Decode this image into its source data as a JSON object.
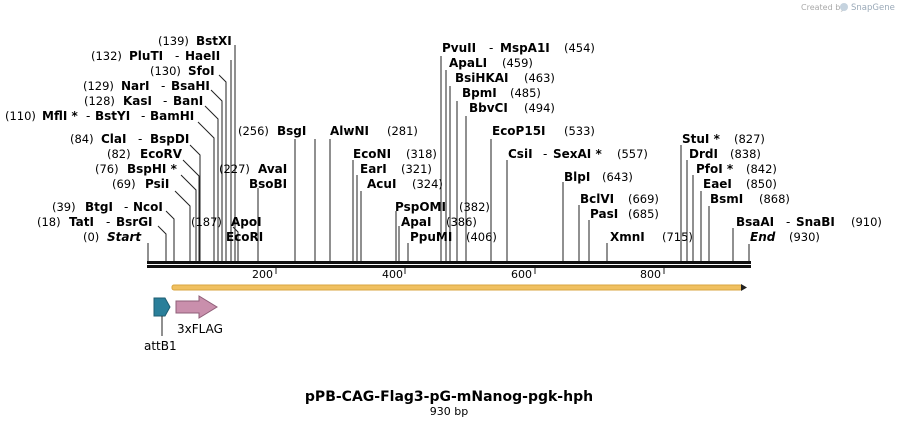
{
  "watermark": {
    "prefix": "Created by",
    "brand": "SnapGene",
    "icon": "snapgene-logo-icon"
  },
  "plasmid": {
    "name": "pPB-CAG-Flag3-pG-mNanog-pgk-hph",
    "length_label": "930 bp"
  },
  "ruler": {
    "ticks": [
      "200",
      "400",
      "600",
      "800"
    ]
  },
  "sites": [
    {
      "pos": "(0)",
      "name": "Start"
    },
    {
      "pos": "(18)",
      "name": "TatI",
      "name2": "BsrGI"
    },
    {
      "pos": "(39)",
      "name": "BtgI",
      "name2": "NcoI"
    },
    {
      "pos": "(69)",
      "name": "PsiI"
    },
    {
      "pos": "(76)",
      "name": "BspHI *"
    },
    {
      "pos": "(82)",
      "name": "EcoRV"
    },
    {
      "pos": "(84)",
      "name": "ClaI",
      "name2": "BspDI"
    },
    {
      "pos": "(110)",
      "name": "MflI *",
      "name2": "BstYI",
      "name3": "BamHI"
    },
    {
      "pos": "(128)",
      "name": "KasI",
      "name2": "BanI"
    },
    {
      "pos": "(129)",
      "name": "NarI",
      "name2": "BsaHI"
    },
    {
      "pos": "(130)",
      "name": "SfoI"
    },
    {
      "pos": "(132)",
      "name": "PluTI",
      "name2": "HaeII"
    },
    {
      "pos": "(139)",
      "name": "BstXI"
    },
    {
      "pos": "(187)",
      "name": "ApoI"
    },
    {
      "pos": "",
      "name": "EcoRI"
    },
    {
      "pos": "(227)",
      "name": "AvaI"
    },
    {
      "pos": "",
      "name": "BsoBI"
    },
    {
      "pos": "(256)",
      "name": "BsgI"
    },
    {
      "pos": "(281)",
      "name": "AlwNI"
    },
    {
      "pos": "(318)",
      "name": "EcoNI"
    },
    {
      "pos": "(321)",
      "name": "EarI"
    },
    {
      "pos": "(324)",
      "name": "AcuI"
    },
    {
      "pos": "(382)",
      "name": "PspOMI"
    },
    {
      "pos": "(386)",
      "name": "ApaI"
    },
    {
      "pos": "(406)",
      "name": "PpuMI"
    },
    {
      "pos": "(454)",
      "name": "PvuII",
      "name2": "MspA1I"
    },
    {
      "pos": "(459)",
      "name": "ApaLI"
    },
    {
      "pos": "(463)",
      "name": "BsiHKAI"
    },
    {
      "pos": "(485)",
      "name": "BpmI"
    },
    {
      "pos": "(494)",
      "name": "BbvCI"
    },
    {
      "pos": "(533)",
      "name": "EcoP15I"
    },
    {
      "pos": "(557)",
      "name": "CsiI",
      "name2": "SexAI *"
    },
    {
      "pos": "(643)",
      "name": "BlpI"
    },
    {
      "pos": "(669)",
      "name": "BclVI"
    },
    {
      "pos": "(685)",
      "name": "PasI"
    },
    {
      "pos": "(715)",
      "name": "XmnI"
    },
    {
      "pos": "(827)",
      "name": "StuI *"
    },
    {
      "pos": "(838)",
      "name": "DrdI"
    },
    {
      "pos": "(842)",
      "name": "PfoI *"
    },
    {
      "pos": "(850)",
      "name": "EaeI"
    },
    {
      "pos": "(868)",
      "name": "BsmI"
    },
    {
      "pos": "(910)",
      "name": "BsaAI",
      "name2": "SnaBI"
    },
    {
      "pos": "(930)",
      "name": "End"
    }
  ],
  "features": [
    {
      "name": "attB1",
      "color": "#2a7f9a"
    },
    {
      "name": "3xFLAG",
      "color": "#c98fac"
    },
    {
      "name": "",
      "color": "#f0c060"
    }
  ]
}
